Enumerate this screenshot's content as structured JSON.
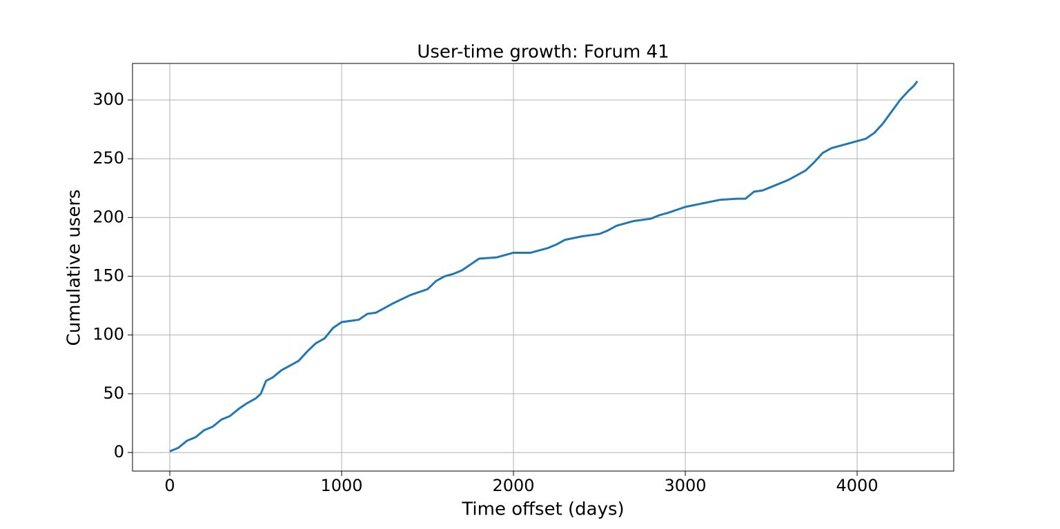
{
  "chart_data": {
    "type": "line",
    "title": "User-time growth: Forum 41",
    "x_label": "Time offset (days)",
    "y_label": "Cumulative users",
    "x": [
      0,
      50,
      100,
      150,
      200,
      250,
      300,
      350,
      400,
      450,
      500,
      530,
      560,
      600,
      650,
      700,
      750,
      800,
      850,
      900,
      950,
      1000,
      1100,
      1150,
      1200,
      1250,
      1300,
      1400,
      1500,
      1550,
      1600,
      1650,
      1700,
      1750,
      1800,
      1900,
      2000,
      2100,
      2200,
      2250,
      2300,
      2400,
      2500,
      2550,
      2600,
      2700,
      2800,
      2850,
      2900,
      3000,
      3100,
      3200,
      3300,
      3350,
      3400,
      3450,
      3500,
      3600,
      3700,
      3750,
      3800,
      3850,
      3900,
      4000,
      4050,
      4100,
      4150,
      4200,
      4250,
      4300,
      4330,
      4350
    ],
    "series": [
      {
        "name": "Cumulative users",
        "color": "#1f77b4",
        "values": [
          1,
          4,
          10,
          13,
          19,
          22,
          28,
          31,
          37,
          42,
          46,
          50,
          61,
          64,
          70,
          74,
          78,
          86,
          93,
          97,
          106,
          111,
          113,
          118,
          119,
          123,
          127,
          134,
          139,
          146,
          150,
          152,
          155,
          160,
          165,
          166,
          170,
          170,
          174,
          177,
          181,
          184,
          186,
          189,
          193,
          197,
          199,
          202,
          204,
          209,
          212,
          215,
          216,
          216,
          222,
          223,
          226,
          232,
          240,
          247,
          255,
          259,
          261,
          265,
          267,
          272,
          280,
          290,
          300,
          308,
          312,
          316
        ]
      }
    ],
    "xlim": [
      -217,
      4562
    ],
    "ylim": [
      -15.8,
      331.1
    ],
    "xticks": [
      0,
      1000,
      2000,
      3000,
      4000
    ],
    "yticks": [
      0,
      50,
      100,
      150,
      200,
      250,
      300
    ],
    "grid": true
  }
}
